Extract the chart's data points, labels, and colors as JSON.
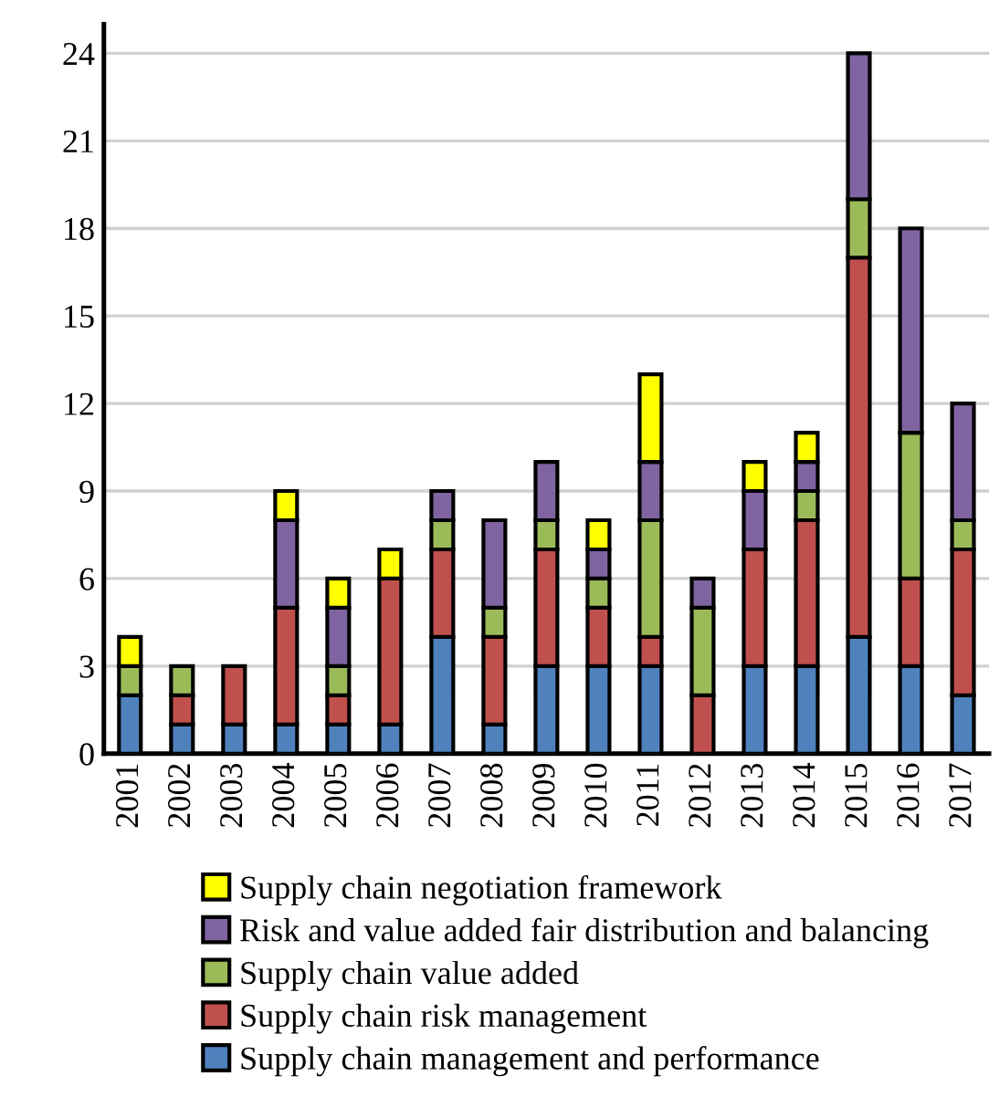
{
  "chart_data": {
    "type": "bar",
    "stacked": true,
    "categories": [
      "2001",
      "2002",
      "2003",
      "2004",
      "2005",
      "2006",
      "2007",
      "2008",
      "2009",
      "2010",
      "2011",
      "2012",
      "2013",
      "2014",
      "2015",
      "2016",
      "2017"
    ],
    "series": [
      {
        "name": "Supply chain management and performance",
        "color": "#4f81bd",
        "values": [
          2,
          1,
          1,
          1,
          1,
          1,
          4,
          1,
          3,
          3,
          3,
          0,
          3,
          3,
          4,
          3,
          2
        ]
      },
      {
        "name": "Supply chain risk management",
        "color": "#c0504d",
        "values": [
          0,
          1,
          2,
          4,
          1,
          5,
          3,
          3,
          4,
          2,
          1,
          2,
          4,
          5,
          13,
          3,
          5
        ]
      },
      {
        "name": "Supply chain value added",
        "color": "#9bbb59",
        "values": [
          1,
          1,
          0,
          0,
          1,
          0,
          1,
          1,
          1,
          1,
          4,
          3,
          0,
          1,
          2,
          5,
          1
        ]
      },
      {
        "name": "Risk and value added fair distribution and balancing",
        "color": "#8064a2",
        "values": [
          0,
          0,
          0,
          3,
          2,
          0,
          1,
          3,
          2,
          1,
          2,
          1,
          2,
          1,
          5,
          7,
          4
        ]
      },
      {
        "name": "Supply chain negotiation framework",
        "color": "#ffff00",
        "values": [
          1,
          0,
          0,
          1,
          1,
          1,
          0,
          0,
          0,
          1,
          3,
          0,
          1,
          1,
          0,
          0,
          0
        ]
      }
    ],
    "ylim": [
      0,
      25
    ],
    "yticks": [
      0,
      3,
      6,
      9,
      12,
      15,
      18,
      21,
      24
    ],
    "grid": "y",
    "legend": "bottom"
  }
}
